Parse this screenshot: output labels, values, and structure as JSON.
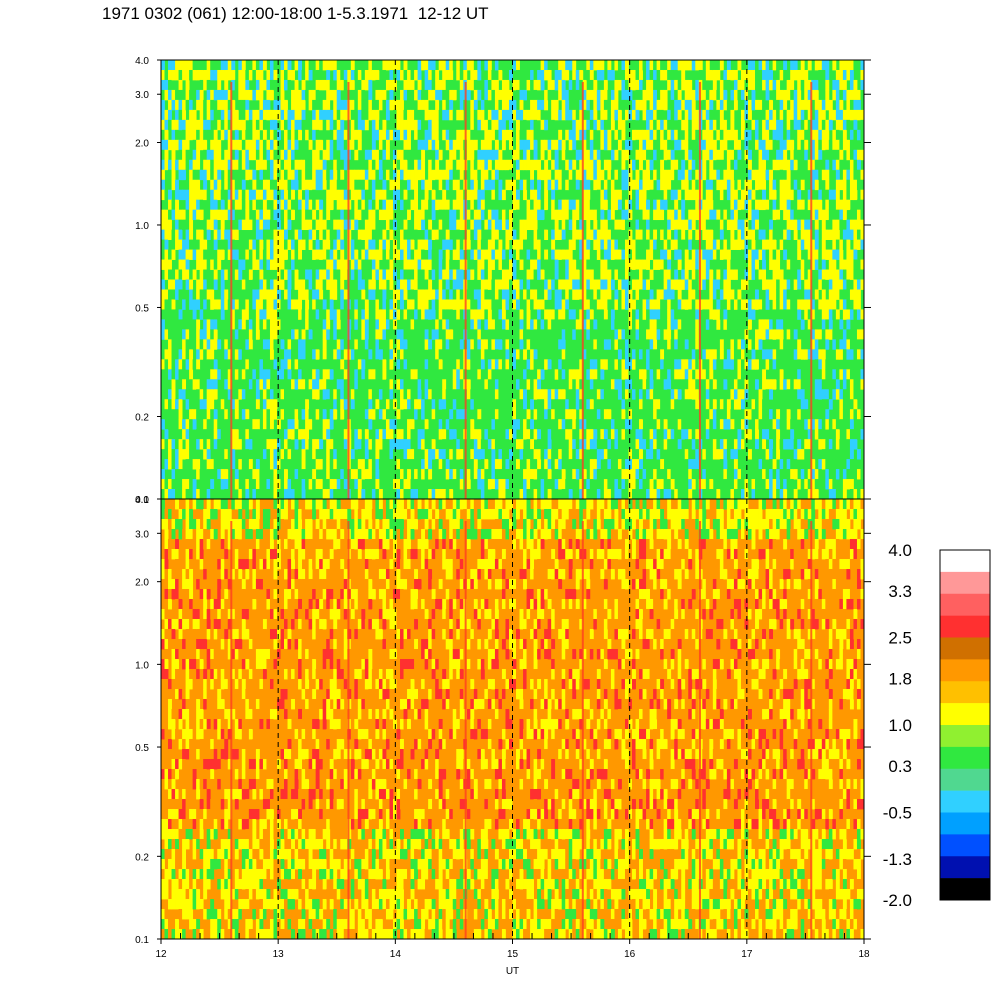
{
  "title": "1971 0302 (061) 12:00-18:00 1-5.3.1971  12-12 UT",
  "chart_data": [
    {
      "type": "heatmap",
      "panel": "upper",
      "xlim": [
        12,
        18
      ],
      "ylim": [
        0.1,
        4.0
      ],
      "y_scale": "log",
      "y_ticks": [
        {
          "value": 0.1,
          "label": "0.1"
        },
        {
          "value": 0.2,
          "label": "0.2"
        },
        {
          "value": 0.5,
          "label": "0.5"
        },
        {
          "value": 1.0,
          "label": "1.0"
        },
        {
          "value": 2.0,
          "label": "2.0"
        },
        {
          "value": 3.0,
          "label": "3.0"
        },
        {
          "value": 4.0,
          "label": "4.0"
        }
      ],
      "dominant_levels": [
        0.3,
        1.0,
        -0.5
      ],
      "hour_markers": [
        13,
        14,
        15,
        16,
        17
      ],
      "bright_streaks": [
        12.6,
        13.6,
        14.6,
        15.6,
        16.6,
        17.55
      ]
    },
    {
      "type": "heatmap",
      "panel": "lower",
      "xlim": [
        12,
        18
      ],
      "ylim": [
        0.1,
        4.0
      ],
      "y_scale": "log",
      "y_ticks": [
        {
          "value": 0.1,
          "label": "0.1"
        },
        {
          "value": 0.2,
          "label": "0.2"
        },
        {
          "value": 0.5,
          "label": "0.5"
        },
        {
          "value": 1.0,
          "label": "1.0"
        },
        {
          "value": 2.0,
          "label": "2.0"
        },
        {
          "value": 3.0,
          "label": "3.0"
        },
        {
          "value": 4.0,
          "label": "4.0"
        }
      ],
      "dominant_levels": [
        1.8,
        1.0,
        2.5
      ],
      "hour_markers": [
        13,
        14,
        15,
        16,
        17
      ],
      "bright_streaks": [
        12.6,
        13.6,
        14.6,
        15.6,
        16.6,
        17.55
      ]
    }
  ],
  "x_axis": {
    "label": "UT",
    "ticks": [
      {
        "value": 12,
        "label": "12"
      },
      {
        "value": 13,
        "label": "13"
      },
      {
        "value": 14,
        "label": "14"
      },
      {
        "value": 15,
        "label": "15"
      },
      {
        "value": 16,
        "label": "16"
      },
      {
        "value": 17,
        "label": "17"
      },
      {
        "value": 18,
        "label": "18"
      }
    ]
  },
  "colorbar": {
    "range": [
      -2.0,
      4.0
    ],
    "colors": [
      "#000000",
      "#0010b0",
      "#0050ff",
      "#00a0ff",
      "#30d0ff",
      "#50d890",
      "#30e840",
      "#90f030",
      "#ffff00",
      "#ffc000",
      "#ff9800",
      "#d07000",
      "#ff3030",
      "#ff6060",
      "#ff9898",
      "#ffffff"
    ],
    "labels": [
      {
        "value": 4.0,
        "label": "4.0"
      },
      {
        "value": 3.3,
        "label": "3.3"
      },
      {
        "value": 2.5,
        "label": "2.5"
      },
      {
        "value": 1.8,
        "label": "1.8"
      },
      {
        "value": 1.0,
        "label": "1.0"
      },
      {
        "value": 0.3,
        "label": "0.3"
      },
      {
        "value": -0.5,
        "label": "-0.5"
      },
      {
        "value": -1.3,
        "label": "-1.3"
      },
      {
        "value": -2.0,
        "label": "-2.0"
      }
    ]
  }
}
